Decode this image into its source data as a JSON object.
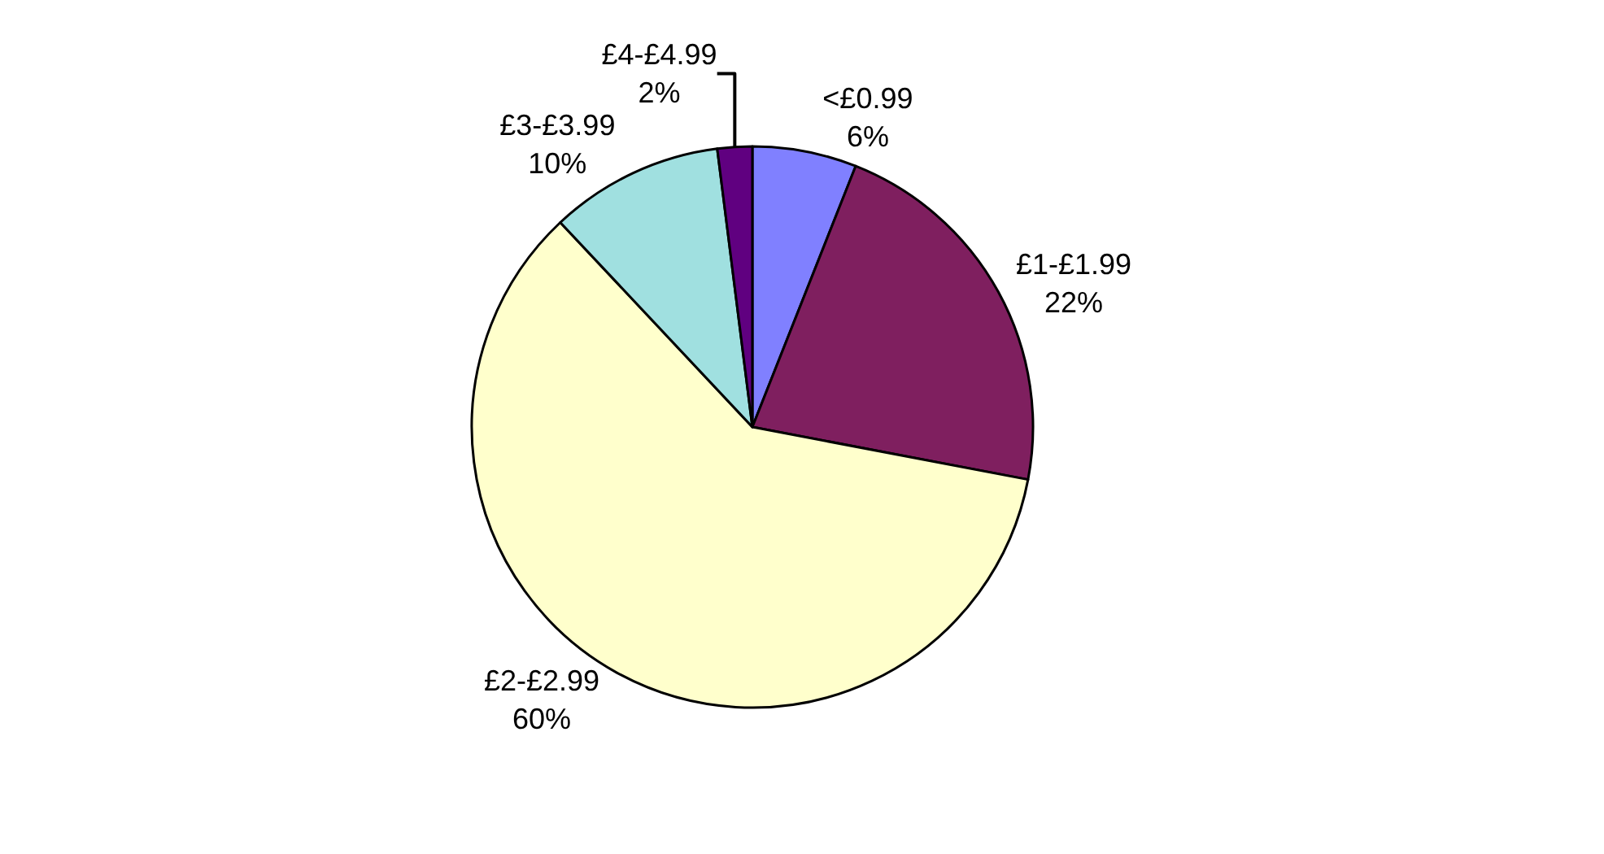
{
  "chart_data": {
    "type": "pie",
    "categories": [
      "<£0.99",
      "£1-£1.99",
      "£2-£2.99",
      "£3-£3.99",
      "£4-£4.99"
    ],
    "values": [
      6,
      22,
      60,
      10,
      2
    ],
    "value_labels": [
      "6%",
      "22%",
      "60%",
      "10%",
      "2%"
    ],
    "colors": [
      "#8080ff",
      "#7f1f5f",
      "#ffffcc",
      "#a0e0e0",
      "#600080"
    ],
    "legend": false
  }
}
